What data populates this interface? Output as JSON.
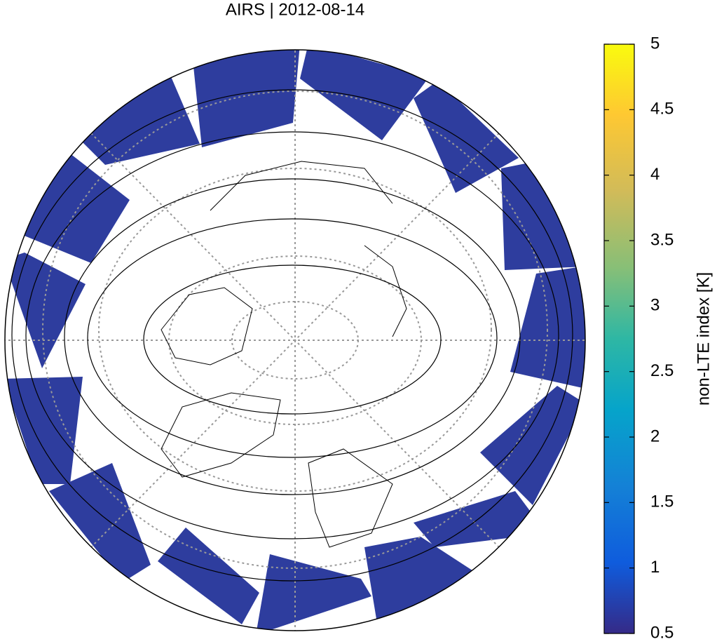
{
  "map": {
    "title": "AIRS | 2012-08-14",
    "colorbar": {
      "label": "non-LTE index [K]",
      "lim": [
        0.5,
        5
      ],
      "ticks": [
        0.5,
        1,
        1.5,
        2,
        2.5,
        3,
        3.5,
        4,
        4.5,
        5
      ]
    }
  }
}
